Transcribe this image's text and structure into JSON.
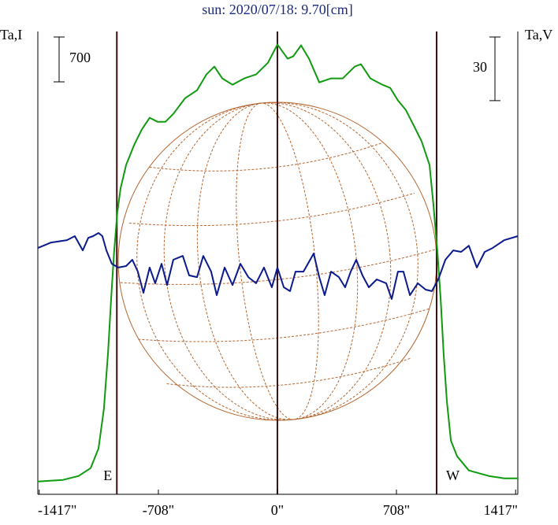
{
  "chart_data": {
    "type": "line",
    "title": "sun: 2020/07/18: 9.70[cm]",
    "xlim": [
      -1425,
      1430
    ],
    "xticks": [
      {
        "value": -1417,
        "label": "-1417\""
      },
      {
        "value": -708,
        "label": "-708\""
      },
      {
        "value": 0,
        "label": "0\""
      },
      {
        "value": 708,
        "label": "708\""
      },
      {
        "value": 1417,
        "label": "1417\""
      }
    ],
    "ylim": [
      -200,
      7020
    ],
    "y2lim": [
      -109,
      109
    ],
    "limb_lines": [
      -955,
      0,
      947
    ],
    "limb_labels": [
      "E",
      "W"
    ],
    "scale_bars": {
      "y": 700,
      "y2": 30
    },
    "series": [
      {
        "name": "Ta,I",
        "color": "#109a10",
        "x": [
          -1425,
          -1275,
          -1182,
          -1111,
          -1064,
          -1032,
          -1008,
          -989,
          -971,
          -952,
          -933,
          -900,
          -853,
          -807,
          -760,
          -713,
          -666,
          -619,
          -549,
          -478,
          -422,
          -375,
          -328,
          -267,
          -197,
          -127,
          -56,
          0,
          61,
          94,
          141,
          188,
          249,
          319,
          389,
          460,
          497,
          553,
          624,
          671,
          717,
          764,
          811,
          858,
          905,
          928,
          952,
          971,
          989,
          1008,
          1032,
          1069,
          1139,
          1257,
          1350,
          1430
        ],
        "values": [
          0,
          25,
          86,
          209,
          516,
          1130,
          1990,
          2849,
          3586,
          4200,
          4568,
          4937,
          5244,
          5489,
          5674,
          5612,
          5612,
          5735,
          5980,
          6103,
          6349,
          6472,
          6288,
          6190,
          6288,
          6349,
          6533,
          6816,
          6595,
          6632,
          6804,
          6595,
          6226,
          6288,
          6288,
          6472,
          6509,
          6288,
          6190,
          6140,
          5944,
          5796,
          5551,
          5305,
          4937,
          4323,
          3586,
          2849,
          1990,
          1253,
          639,
          393,
          172,
          86,
          49,
          49
        ]
      },
      {
        "name": "Ta,V",
        "color": "#0a1a8c",
        "axis": "y2",
        "x": [
          -1425,
          -1346,
          -1252,
          -1205,
          -1158,
          -1125,
          -1097,
          -1064,
          -1041,
          -1017,
          -985,
          -947,
          -900,
          -863,
          -830,
          -797,
          -760,
          -727,
          -689,
          -656,
          -619,
          -563,
          -525,
          -478,
          -441,
          -394,
          -361,
          -314,
          -267,
          -220,
          -173,
          -127,
          -80,
          -33,
          0,
          38,
          75,
          108,
          155,
          216,
          249,
          281,
          319,
          366,
          403,
          436,
          469,
          506,
          544,
          591,
          647,
          680,
          717,
          750,
          788,
          835,
          882,
          919,
          957,
          999,
          1046,
          1093,
          1139,
          1186,
          1233,
          1280,
          1350,
          1430
        ],
        "values": [
          7.0,
          9.6,
          10.7,
          12.6,
          5.9,
          11.8,
          12.6,
          14.1,
          12.6,
          5.9,
          -0.4,
          -2.2,
          -1.5,
          1.5,
          -4.1,
          -14.1,
          -2.2,
          -9.6,
          -0.4,
          -10.4,
          1.5,
          3.3,
          -5.9,
          -6.7,
          3.3,
          -4.1,
          -15.2,
          -2.2,
          -10.4,
          -0.4,
          -6.7,
          -9.6,
          -2.2,
          -11.5,
          -2.2,
          -11.5,
          -13.3,
          -4.1,
          -4.1,
          4.4,
          -6.7,
          -15.2,
          -4.1,
          -6.7,
          -11.5,
          -4.1,
          1.5,
          -5.9,
          -11.5,
          -7.8,
          -9.6,
          -17.0,
          -4.1,
          -4.1,
          -15.2,
          -9.6,
          -12.6,
          -13.3,
          -7.8,
          1.5,
          5.9,
          5.2,
          8.1,
          -2.2,
          5.2,
          7.0,
          10.7,
          12.6
        ]
      }
    ]
  }
}
